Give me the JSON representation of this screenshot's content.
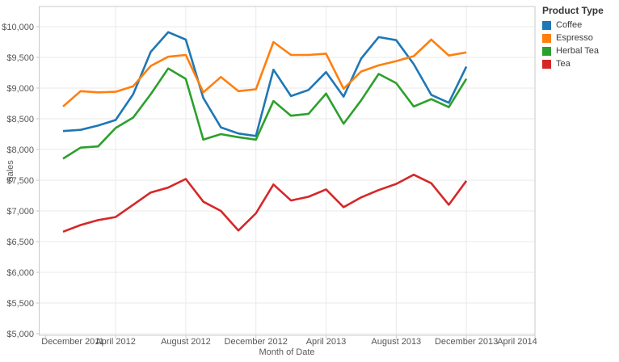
{
  "legend": {
    "title": "Product Type"
  },
  "chart_data": {
    "type": "line",
    "title": "",
    "xlabel": "Month of Date",
    "ylabel": "Sales",
    "x": [
      "Jan 2012",
      "Feb 2012",
      "Mar 2012",
      "Apr 2012",
      "May 2012",
      "Jun 2012",
      "Jul 2012",
      "Aug 2012",
      "Sep 2012",
      "Oct 2012",
      "Nov 2012",
      "Dec 2012",
      "Jan 2013",
      "Feb 2013",
      "Mar 2013",
      "Apr 2013",
      "May 2013",
      "Jun 2013",
      "Jul 2013",
      "Aug 2013",
      "Sep 2013",
      "Oct 2013",
      "Nov 2013",
      "Dec 2013"
    ],
    "series": [
      {
        "name": "Coffee",
        "color": "#1F77B4",
        "values": [
          8300,
          8320,
          8390,
          8480,
          8900,
          9590,
          9910,
          9790,
          8840,
          8360,
          8260,
          8220,
          9300,
          8870,
          8970,
          9260,
          8860,
          9480,
          9830,
          9780,
          9390,
          8890,
          8760,
          9350
        ]
      },
      {
        "name": "Espresso",
        "color": "#FF7F0E",
        "values": [
          8700,
          8950,
          8930,
          8940,
          9030,
          9360,
          9510,
          9540,
          8930,
          9180,
          8950,
          8980,
          9750,
          9540,
          9540,
          9560,
          8990,
          9270,
          9370,
          9440,
          9520,
          9790,
          9530,
          9580
        ]
      },
      {
        "name": "Herbal Tea",
        "color": "#2CA02C",
        "values": [
          7850,
          8030,
          8050,
          8350,
          8520,
          8900,
          9320,
          9150,
          8160,
          8250,
          8200,
          8160,
          8790,
          8550,
          8580,
          8910,
          8420,
          8800,
          9230,
          9080,
          8700,
          8820,
          8690,
          9150
        ]
      },
      {
        "name": "Tea",
        "color": "#D62728",
        "values": [
          6660,
          6770,
          6850,
          6900,
          7100,
          7300,
          7380,
          7520,
          7150,
          7000,
          6680,
          6960,
          7430,
          7170,
          7230,
          7350,
          7060,
          7220,
          7340,
          7440,
          7590,
          7450,
          7100,
          7490
        ]
      }
    ],
    "ylim": [
      5000,
      10000
    ],
    "y_ticks": [
      5000,
      5500,
      6000,
      6500,
      7000,
      7500,
      8000,
      8500,
      9000,
      9500,
      10000
    ],
    "y_tick_labels": [
      "$5,000",
      "$5,500",
      "$6,000",
      "$6,500",
      "$7,000",
      "$7,500",
      "$8,000",
      "$8,500",
      "$9,000",
      "$9,500",
      "$10,000"
    ],
    "x_tick_labels": [
      "December 2011",
      "April 2012",
      "August 2012",
      "December 2012",
      "April 2013",
      "August 2013",
      "December 2013",
      "April 2014"
    ],
    "x_axis_range": [
      "December 2011",
      "April 2014"
    ],
    "grid": true,
    "legend_position": "top-right"
  }
}
